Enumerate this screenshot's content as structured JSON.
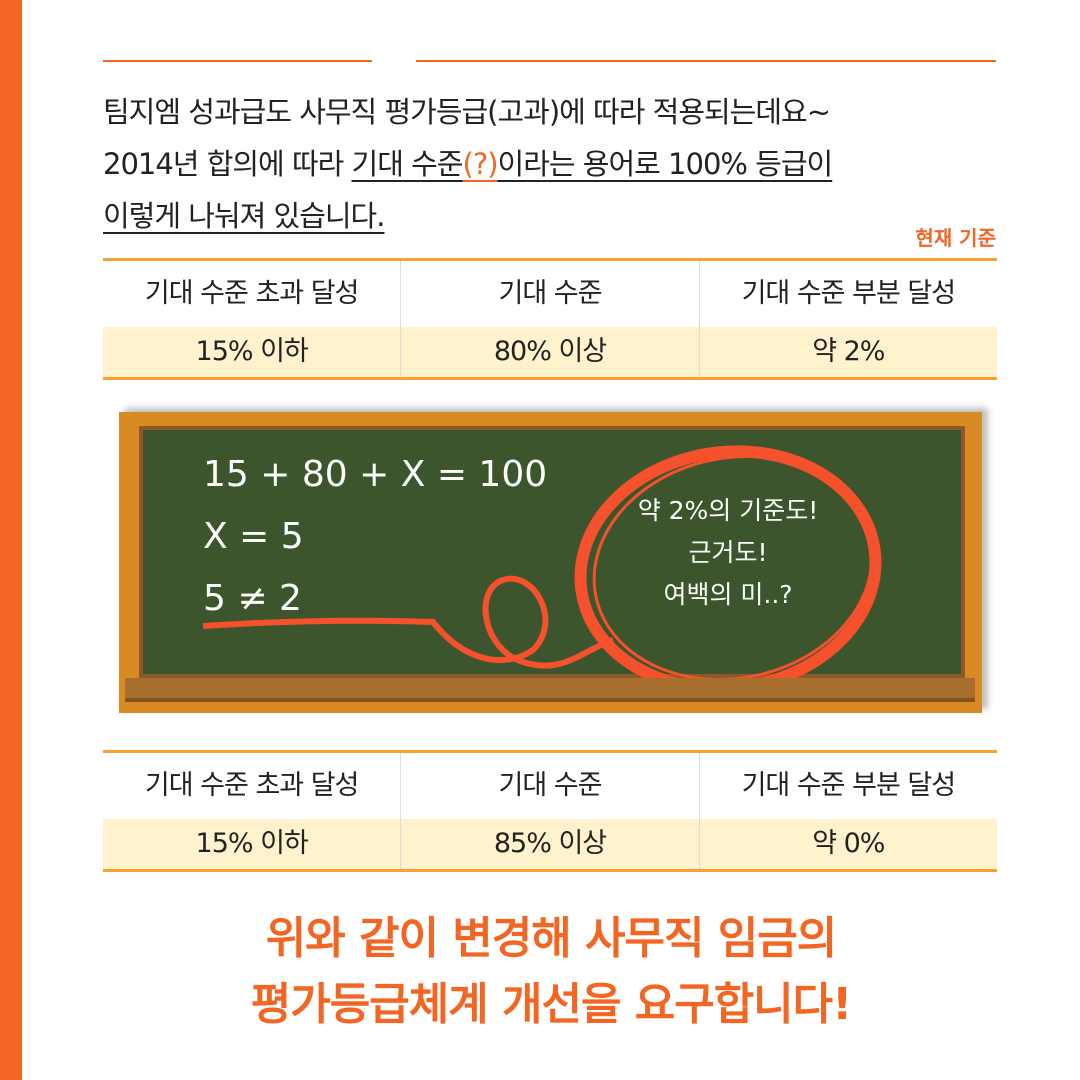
{
  "intro": {
    "line1": "팀지엠 성과급도 사무직 평가등급(고과)에 따라 적용되는데요~",
    "line2_pre": "2014년 합의에 따라 ",
    "line2_u1": "기대 수준",
    "line2_q": "(?)",
    "line2_u2": "이라는 용어로 100% 등급이",
    "line3": "이렇게 나눠져 있습니다."
  },
  "basis_label": "현재 기준",
  "table_current": {
    "headers": [
      "기대 수준 초과 달성",
      "기대 수준",
      "기대 수준 부분 달성"
    ],
    "values": [
      "15% 이하",
      "80% 이상",
      "약 2%"
    ]
  },
  "chalkboard": {
    "eq1": "15 + 80 + X = 100",
    "eq2": "X = 5",
    "eq3": "5 ≠ 2",
    "note1": "약 2%의 기준도!",
    "note2": "근거도!",
    "note3": "여백의 미..?"
  },
  "table_proposed": {
    "headers": [
      "기대 수준 초과 달성",
      "기대 수준",
      "기대 수준 부분 달성"
    ],
    "values": [
      "15% 이하",
      "85% 이상",
      "약 0%"
    ]
  },
  "conclusion": {
    "line1": "위와 같이 변경해 사무직 임금의",
    "line2": "평가등급체계 개선을 요구합니다!"
  },
  "colors": {
    "accent": "#F26522",
    "table_border": "#F7A035",
    "value_bg": "#FFF2CC",
    "board": "#3D552D",
    "frame": "#DA8A22",
    "chalk_red": "#F4512C"
  }
}
